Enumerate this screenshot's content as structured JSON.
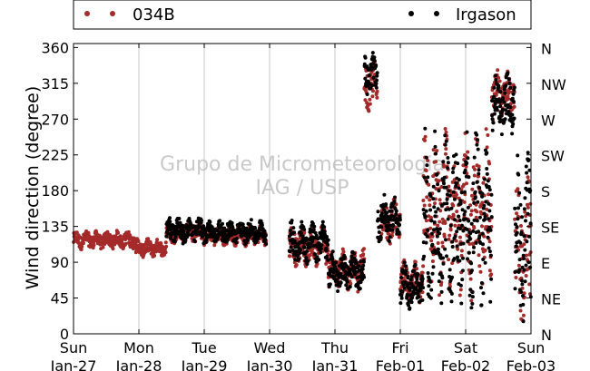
{
  "chart_data": {
    "type": "scatter",
    "ylabel": "Wind direction (degree)",
    "ylim": [
      0,
      365
    ],
    "xlim": [
      0,
      7
    ],
    "grid": "vertical",
    "legend_placement": "top",
    "watermark": [
      "Grupo de Micrometeorologia",
      "IAG / USP"
    ],
    "x_ticks": [
      {
        "day": "Sun",
        "date": "Jan-27"
      },
      {
        "day": "Mon",
        "date": "Jan-28"
      },
      {
        "day": "Tue",
        "date": "Jan-29"
      },
      {
        "day": "Wed",
        "date": "Jan-30"
      },
      {
        "day": "Thu",
        "date": "Jan-31"
      },
      {
        "day": "Fri",
        "date": "Feb-01"
      },
      {
        "day": "Sat",
        "date": "Feb-02"
      },
      {
        "day": "Sun",
        "date": "Feb-03"
      }
    ],
    "y_ticks": [
      0,
      45,
      90,
      135,
      180,
      225,
      270,
      315,
      360
    ],
    "compass_labels": [
      "N",
      "NE",
      "E",
      "SE",
      "S",
      "SW",
      "W",
      "NW",
      "N"
    ],
    "series": [
      {
        "name": "034B",
        "color": "#a52a2a",
        "segments": [
          {
            "x": [
              0.0,
              0.95
            ],
            "center": 118,
            "spread": 12
          },
          {
            "x": [
              0.95,
              1.42
            ],
            "center": 108,
            "spread": 12
          },
          {
            "x": [
              1.42,
              1.62
            ],
            "center": 125,
            "spread": 12
          },
          {
            "x": [
              1.62,
              2.0
            ],
            "center": 128,
            "spread": 14
          },
          {
            "x": [
              2.0,
              2.95
            ],
            "center": 124,
            "spread": 14
          },
          {
            "x": [
              3.3,
              3.9
            ],
            "center": 110,
            "spread": 28
          },
          {
            "x": [
              3.9,
              4.45
            ],
            "center": 80,
            "spread": 28
          },
          {
            "x": [
              4.45,
              4.65
            ],
            "center": 310,
            "spread": 35
          },
          {
            "x": [
              4.7,
              5.0
            ],
            "center": 140,
            "spread": 30
          },
          {
            "x": [
              5.0,
              5.35
            ],
            "center": 65,
            "spread": 30
          },
          {
            "x": [
              5.35,
              6.4
            ],
            "center": 150,
            "spread": 110
          },
          {
            "x": [
              6.4,
              6.75
            ],
            "center": 300,
            "spread": 35
          },
          {
            "x": [
              6.75,
              7.0
            ],
            "center": 100,
            "spread": 100
          }
        ]
      },
      {
        "name": "Irgason",
        "color": "#000000",
        "segments": [
          {
            "x": [
              1.42,
              2.0
            ],
            "center": 130,
            "spread": 18
          },
          {
            "x": [
              2.0,
              2.95
            ],
            "center": 128,
            "spread": 16
          },
          {
            "x": [
              3.3,
              3.9
            ],
            "center": 115,
            "spread": 28
          },
          {
            "x": [
              3.9,
              4.45
            ],
            "center": 78,
            "spread": 26
          },
          {
            "x": [
              4.45,
              4.65
            ],
            "center": 325,
            "spread": 30
          },
          {
            "x": [
              4.65,
              5.0
            ],
            "center": 145,
            "spread": 30
          },
          {
            "x": [
              5.0,
              5.35
            ],
            "center": 60,
            "spread": 30
          },
          {
            "x": [
              5.35,
              6.4
            ],
            "center": 140,
            "spread": 120
          },
          {
            "x": [
              6.4,
              6.75
            ],
            "center": 290,
            "spread": 40
          },
          {
            "x": [
              6.75,
              7.0
            ],
            "center": 120,
            "spread": 110
          }
        ]
      }
    ]
  }
}
